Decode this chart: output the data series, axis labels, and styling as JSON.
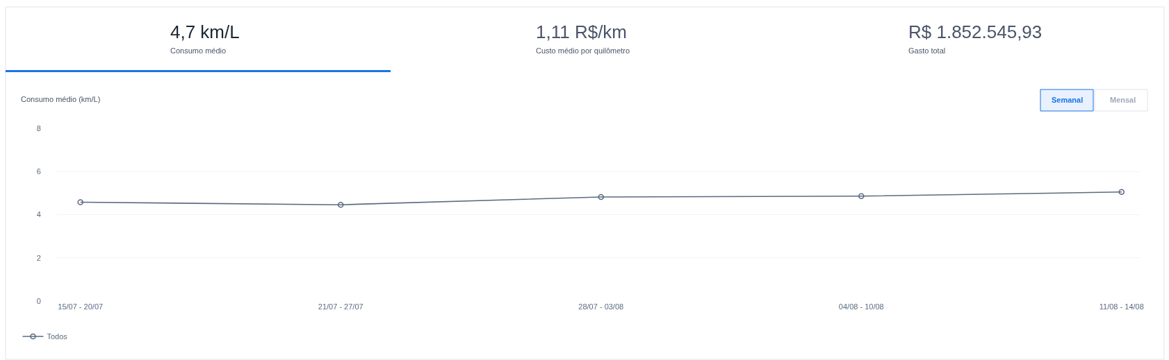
{
  "chart_data": {
    "type": "line",
    "title": "Consumo médio (km/L)",
    "categories": [
      "15/07 - 20/07",
      "21/07 - 27/07",
      "28/07 - 03/08",
      "04/08 - 10/08",
      "11/08 - 14/08"
    ],
    "series": [
      {
        "name": "Todos",
        "color": "#5a6b80",
        "values": [
          4.58,
          4.46,
          4.82,
          4.86,
          5.05
        ]
      }
    ],
    "ylim": [
      0,
      8
    ],
    "yticks": [
      0,
      2,
      4,
      6,
      8
    ],
    "grid": "y",
    "legend": "bottom left",
    "marker": "circle",
    "line_style": "solid",
    "annotations": [
      "4,7 km/L",
      "Consumo médio",
      "1,11 R$/km",
      "Custo médio por quilômetro",
      "R$ 1.852.545,93",
      "Gasto total",
      "Semanal",
      "Mensal"
    ]
  }
}
